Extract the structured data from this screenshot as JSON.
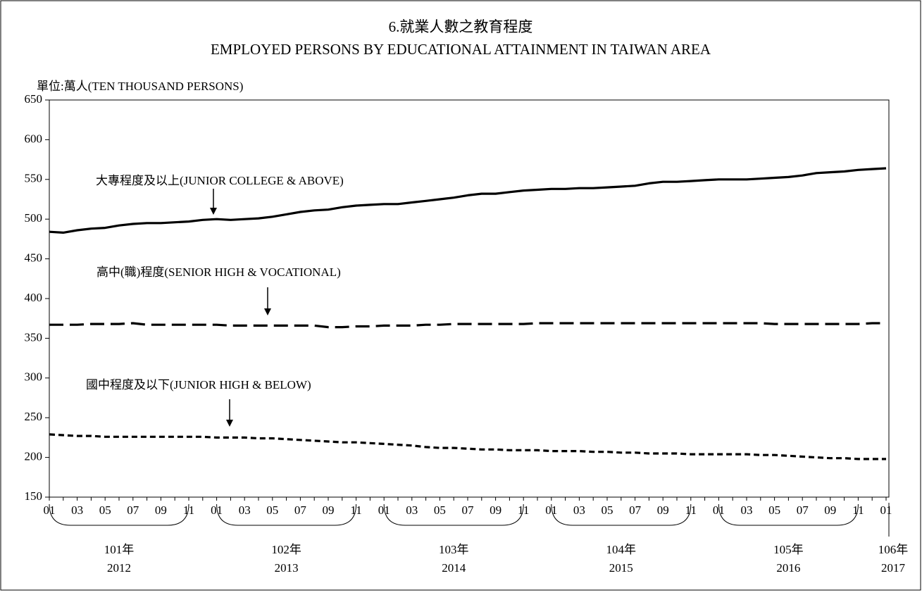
{
  "chart_data": {
    "type": "line",
    "title": "6.就業人數之教育程度",
    "subtitle": "EMPLOYED PERSONS BY EDUCATIONAL ATTAINMENT IN TAIWAN AREA",
    "y_label": "單位:萬人(TEN THOUSAND PERSONS)",
    "ylim": [
      150,
      650
    ],
    "yticks": [
      150,
      200,
      250,
      300,
      350,
      400,
      450,
      500,
      550,
      600,
      650
    ],
    "grid": false,
    "categories": [
      "01",
      null,
      "03",
      null,
      "05",
      null,
      "07",
      null,
      "09",
      null,
      "11",
      null,
      "01",
      null,
      "03",
      null,
      "05",
      null,
      "07",
      null,
      "09",
      null,
      "11",
      null,
      "01",
      null,
      "03",
      null,
      "05",
      null,
      "07",
      null,
      "09",
      null,
      "11",
      null,
      "01",
      null,
      "03",
      null,
      "05",
      null,
      "07",
      null,
      "09",
      null,
      "11",
      null,
      "01",
      null,
      "03",
      null,
      "05",
      null,
      "07",
      null,
      "09",
      null,
      "11",
      null,
      "01"
    ],
    "year_groups": [
      {
        "label": "101年",
        "year": "2012"
      },
      {
        "label": "102年",
        "year": "2013"
      },
      {
        "label": "103年",
        "year": "2014"
      },
      {
        "label": "104年",
        "year": "2015"
      },
      {
        "label": "105年",
        "year": "2016"
      },
      {
        "label": "106年",
        "year": "2017"
      }
    ],
    "series": [
      {
        "name": "大專程度及以上(JUNIOR COLLEGE & ABOVE)",
        "color": "#000000",
        "line_style": "solid",
        "values": [
          484,
          483,
          486,
          488,
          489,
          492,
          494,
          495,
          495,
          496,
          497,
          499,
          500,
          499,
          500,
          501,
          503,
          506,
          509,
          511,
          512,
          515,
          517,
          518,
          519,
          519,
          521,
          523,
          525,
          527,
          530,
          532,
          532,
          534,
          536,
          537,
          538,
          538,
          539,
          539,
          540,
          541,
          542,
          545,
          547,
          547,
          548,
          549,
          550,
          550,
          550,
          551,
          552,
          553,
          555,
          558,
          559,
          560,
          562,
          563,
          564
        ]
      },
      {
        "name": "高中(職)程度(SENIOR HIGH & VOCATIONAL)",
        "color": "#000000",
        "line_style": "dashed",
        "values": [
          367,
          367,
          367,
          368,
          368,
          368,
          369,
          367,
          367,
          367,
          367,
          367,
          367,
          366,
          366,
          366,
          366,
          366,
          366,
          366,
          364,
          364,
          365,
          365,
          366,
          366,
          366,
          367,
          367,
          368,
          368,
          368,
          368,
          368,
          368,
          369,
          369,
          369,
          369,
          369,
          369,
          369,
          369,
          369,
          369,
          369,
          369,
          369,
          369,
          369,
          369,
          369,
          368,
          368,
          368,
          368,
          368,
          368,
          368,
          369,
          369
        ]
      },
      {
        "name": "國中程度及以下(JUNIOR HIGH & BELOW)",
        "color": "#000000",
        "line_style": "dotted",
        "values": [
          229,
          228,
          227,
          227,
          226,
          226,
          226,
          226,
          226,
          226,
          226,
          226,
          225,
          225,
          225,
          224,
          224,
          223,
          222,
          221,
          220,
          219,
          219,
          218,
          217,
          216,
          215,
          213,
          212,
          212,
          211,
          210,
          210,
          209,
          209,
          209,
          208,
          208,
          208,
          207,
          207,
          206,
          206,
          205,
          205,
          205,
          204,
          204,
          204,
          204,
          204,
          203,
          203,
          202,
          201,
          200,
          199,
          199,
          198,
          198,
          198
        ]
      }
    ]
  }
}
